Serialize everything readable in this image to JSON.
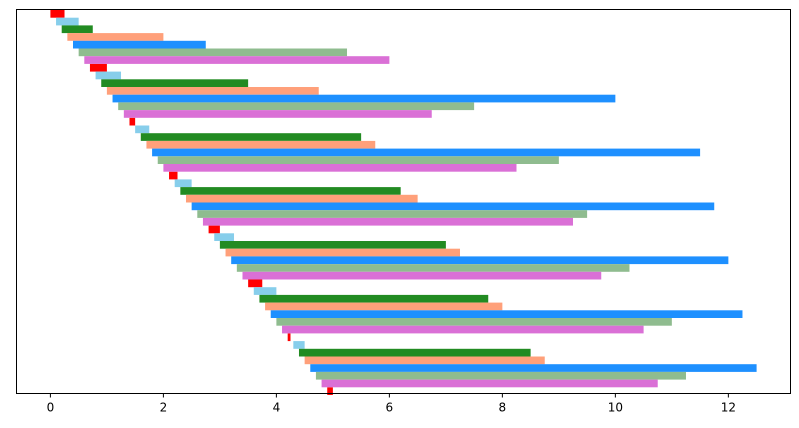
{
  "chart_data": {
    "type": "bar",
    "orientation": "horizontal",
    "title": "",
    "xlabel": "",
    "ylabel": "",
    "xlim": [
      -0.6,
      13.1
    ],
    "x_ticks": [
      0,
      2,
      4,
      6,
      8,
      10,
      12
    ],
    "x_tick_labels": [
      "0",
      "2",
      "4",
      "6",
      "8",
      "10",
      "12"
    ],
    "y_ticks_visible": false,
    "grid": false,
    "legend": "none",
    "series": [
      {
        "color": "#ff0000",
        "starts": [
          0.0,
          0.7,
          1.4,
          2.1,
          2.8,
          3.5,
          4.2,
          4.9
        ],
        "values": [
          0.25,
          0.3,
          0.1,
          0.15,
          0.2,
          0.25,
          0.05,
          0.1
        ]
      },
      {
        "color": "#87ceeb",
        "starts": [
          0.1,
          0.8,
          1.5,
          2.2,
          2.9,
          3.6,
          4.3
        ],
        "values": [
          0.4,
          0.45,
          0.25,
          0.3,
          0.35,
          0.4,
          0.2
        ]
      },
      {
        "color": "#228b22",
        "starts": [
          0.2,
          0.9,
          1.6,
          2.3,
          3.0,
          3.7,
          4.4
        ],
        "values": [
          0.55,
          2.6,
          3.9,
          3.9,
          4.0,
          4.05,
          4.1
        ]
      },
      {
        "color": "#ffa07a",
        "starts": [
          0.3,
          1.0,
          1.7,
          2.4,
          3.1,
          3.8,
          4.5
        ],
        "values": [
          1.7,
          3.75,
          4.05,
          4.1,
          4.15,
          4.2,
          4.25
        ]
      },
      {
        "color": "#1e90ff",
        "starts": [
          0.4,
          1.1,
          1.8,
          2.5,
          3.2,
          3.9,
          4.6
        ],
        "values": [
          2.35,
          8.9,
          9.7,
          9.25,
          8.8,
          8.35,
          7.9
        ]
      },
      {
        "color": "#8fbc8f",
        "starts": [
          0.5,
          1.2,
          1.9,
          2.6,
          3.3,
          4.0,
          4.7
        ],
        "values": [
          4.75,
          6.3,
          7.1,
          6.9,
          6.95,
          7.0,
          6.55
        ]
      },
      {
        "color": "#da70d6",
        "starts": [
          0.6,
          1.3,
          2.0,
          2.7,
          3.4,
          4.1,
          4.8
        ],
        "values": [
          5.4,
          5.45,
          6.25,
          6.55,
          6.35,
          6.4,
          5.95
        ]
      }
    ]
  }
}
